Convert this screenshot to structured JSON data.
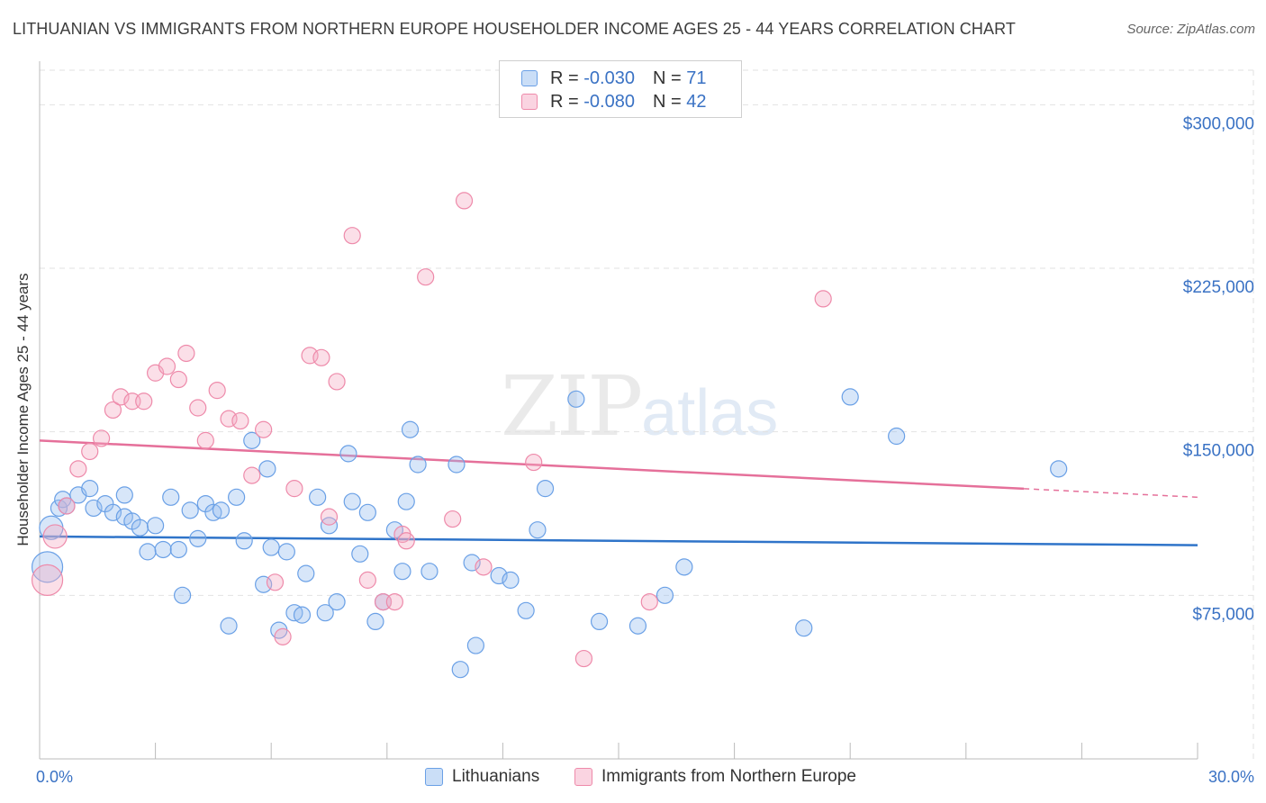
{
  "header": {
    "title": "LITHUANIAN VS IMMIGRANTS FROM NORTHERN EUROPE HOUSEHOLDER INCOME AGES 25 - 44 YEARS CORRELATION CHART",
    "source": "Source: ZipAtlas.com"
  },
  "watermark": {
    "zip": "ZIP",
    "atlas": "atlas"
  },
  "legend": {
    "rows": [
      {
        "r_label": "R = ",
        "r_value": "-0.030",
        "n_label": "N = ",
        "n_value": "71",
        "color": "#6aa0e6"
      },
      {
        "r_label": "R = ",
        "r_value": "-0.080",
        "n_label": "N = ",
        "n_value": "42",
        "color": "#ee8aaa"
      }
    ]
  },
  "bottom_legend": {
    "items": [
      {
        "label": "Lithuanians",
        "color": "#6aa0e6"
      },
      {
        "label": "Immigrants from Northern Europe",
        "color": "#ee8aaa"
      }
    ]
  },
  "chart_data": {
    "type": "scatter",
    "title": "LITHUANIAN VS IMMIGRANTS FROM NORTHERN EUROPE HOUSEHOLDER INCOME AGES 25 - 44 YEARS CORRELATION CHART",
    "xlabel": "",
    "ylabel": "Householder Income Ages 25 - 44 years",
    "xlim": [
      0,
      30
    ],
    "ylim": [
      0,
      315000
    ],
    "x_tick_labels": [
      {
        "value": 0,
        "label": "0.0%"
      },
      {
        "value": 30,
        "label": "30.0%"
      }
    ],
    "y_ticks": [
      {
        "value": 75000,
        "label": "$75,000"
      },
      {
        "value": 150000,
        "label": "$150,000"
      },
      {
        "value": 225000,
        "label": "$225,000"
      },
      {
        "value": 300000,
        "label": "$300,000"
      }
    ],
    "series": [
      {
        "name": "Lithuanians",
        "color": "#6aa0e6",
        "trend": {
          "x": [
            0,
            30
          ],
          "y": [
            102000,
            98000
          ],
          "solid_until": 30
        },
        "points": [
          [
            0.3,
            106000,
            2
          ],
          [
            0.2,
            88000,
            3
          ],
          [
            0.5,
            115000,
            1
          ],
          [
            0.6,
            119000,
            1
          ],
          [
            0.7,
            116000,
            1
          ],
          [
            1.0,
            121000,
            1
          ],
          [
            1.3,
            124000,
            1
          ],
          [
            1.4,
            115000,
            1
          ],
          [
            1.7,
            117000,
            1
          ],
          [
            1.9,
            113000,
            1
          ],
          [
            2.2,
            111000,
            1
          ],
          [
            2.2,
            121000,
            1
          ],
          [
            2.4,
            109000,
            1
          ],
          [
            2.6,
            106000,
            1
          ],
          [
            2.8,
            95000,
            1
          ],
          [
            3.0,
            107000,
            1
          ],
          [
            3.2,
            96000,
            1
          ],
          [
            3.4,
            120000,
            1
          ],
          [
            3.6,
            96000,
            1
          ],
          [
            3.7,
            75000,
            1
          ],
          [
            3.9,
            114000,
            1
          ],
          [
            4.1,
            101000,
            1
          ],
          [
            4.3,
            117000,
            1
          ],
          [
            4.5,
            113000,
            1
          ],
          [
            4.7,
            114000,
            1
          ],
          [
            4.9,
            61000,
            1
          ],
          [
            5.1,
            120000,
            1
          ],
          [
            5.3,
            100000,
            1
          ],
          [
            5.5,
            146000,
            1
          ],
          [
            5.8,
            80000,
            1
          ],
          [
            5.9,
            133000,
            1
          ],
          [
            6.0,
            97000,
            1
          ],
          [
            6.2,
            59000,
            1
          ],
          [
            6.4,
            95000,
            1
          ],
          [
            6.6,
            67000,
            1
          ],
          [
            6.8,
            66000,
            1
          ],
          [
            6.9,
            85000,
            1
          ],
          [
            7.2,
            120000,
            1
          ],
          [
            7.4,
            67000,
            1
          ],
          [
            7.5,
            107000,
            1
          ],
          [
            7.7,
            72000,
            1
          ],
          [
            8.0,
            140000,
            1
          ],
          [
            8.1,
            118000,
            1
          ],
          [
            8.3,
            94000,
            1
          ],
          [
            8.5,
            113000,
            1
          ],
          [
            8.7,
            63000,
            1
          ],
          [
            8.9,
            72000,
            1
          ],
          [
            9.2,
            105000,
            1
          ],
          [
            9.4,
            86000,
            1
          ],
          [
            9.5,
            118000,
            1
          ],
          [
            9.6,
            151000,
            1
          ],
          [
            9.8,
            135000,
            1
          ],
          [
            10.1,
            86000,
            1
          ],
          [
            10.8,
            135000,
            1
          ],
          [
            10.9,
            41000,
            1
          ],
          [
            11.2,
            90000,
            1
          ],
          [
            11.3,
            52000,
            1
          ],
          [
            11.9,
            84000,
            1
          ],
          [
            12.2,
            82000,
            1
          ],
          [
            12.6,
            68000,
            1
          ],
          [
            12.9,
            105000,
            1
          ],
          [
            13.1,
            124000,
            1
          ],
          [
            13.9,
            165000,
            1
          ],
          [
            14.5,
            63000,
            1
          ],
          [
            15.5,
            61000,
            1
          ],
          [
            16.2,
            75000,
            1
          ],
          [
            16.7,
            88000,
            1
          ],
          [
            19.8,
            60000,
            1
          ],
          [
            21.0,
            166000,
            1
          ],
          [
            22.2,
            148000,
            1
          ],
          [
            26.4,
            133000,
            1
          ]
        ]
      },
      {
        "name": "Immigrants from Northern Europe",
        "color": "#ee8aaa",
        "trend": {
          "x": [
            0,
            30
          ],
          "y": [
            146000,
            120000
          ],
          "solid_until": 25.5
        },
        "points": [
          [
            0.2,
            82000,
            3
          ],
          [
            0.4,
            102000,
            2
          ],
          [
            0.7,
            116000,
            1
          ],
          [
            1.0,
            133000,
            1
          ],
          [
            1.3,
            141000,
            1
          ],
          [
            1.6,
            147000,
            1
          ],
          [
            1.9,
            160000,
            1
          ],
          [
            2.1,
            166000,
            1
          ],
          [
            2.4,
            164000,
            1
          ],
          [
            2.7,
            164000,
            1
          ],
          [
            3.0,
            177000,
            1
          ],
          [
            3.3,
            180000,
            1
          ],
          [
            3.6,
            174000,
            1
          ],
          [
            3.8,
            186000,
            1
          ],
          [
            4.1,
            161000,
            1
          ],
          [
            4.3,
            146000,
            1
          ],
          [
            4.6,
            169000,
            1
          ],
          [
            4.9,
            156000,
            1
          ],
          [
            5.2,
            155000,
            1
          ],
          [
            5.5,
            130000,
            1
          ],
          [
            5.8,
            151000,
            1
          ],
          [
            6.1,
            81000,
            1
          ],
          [
            6.3,
            56000,
            1
          ],
          [
            6.6,
            124000,
            1
          ],
          [
            7.0,
            185000,
            1
          ],
          [
            7.3,
            184000,
            1
          ],
          [
            7.5,
            111000,
            1
          ],
          [
            7.7,
            173000,
            1
          ],
          [
            8.1,
            240000,
            1
          ],
          [
            8.5,
            82000,
            1
          ],
          [
            8.9,
            72000,
            1
          ],
          [
            9.2,
            72000,
            1
          ],
          [
            9.4,
            103000,
            1
          ],
          [
            9.5,
            100000,
            1
          ],
          [
            10.0,
            221000,
            1
          ],
          [
            10.7,
            110000,
            1
          ],
          [
            11.0,
            256000,
            1
          ],
          [
            11.5,
            88000,
            1
          ],
          [
            12.8,
            136000,
            1
          ],
          [
            14.1,
            46000,
            1
          ],
          [
            15.8,
            72000,
            1
          ],
          [
            20.3,
            211000,
            1
          ]
        ]
      }
    ]
  }
}
